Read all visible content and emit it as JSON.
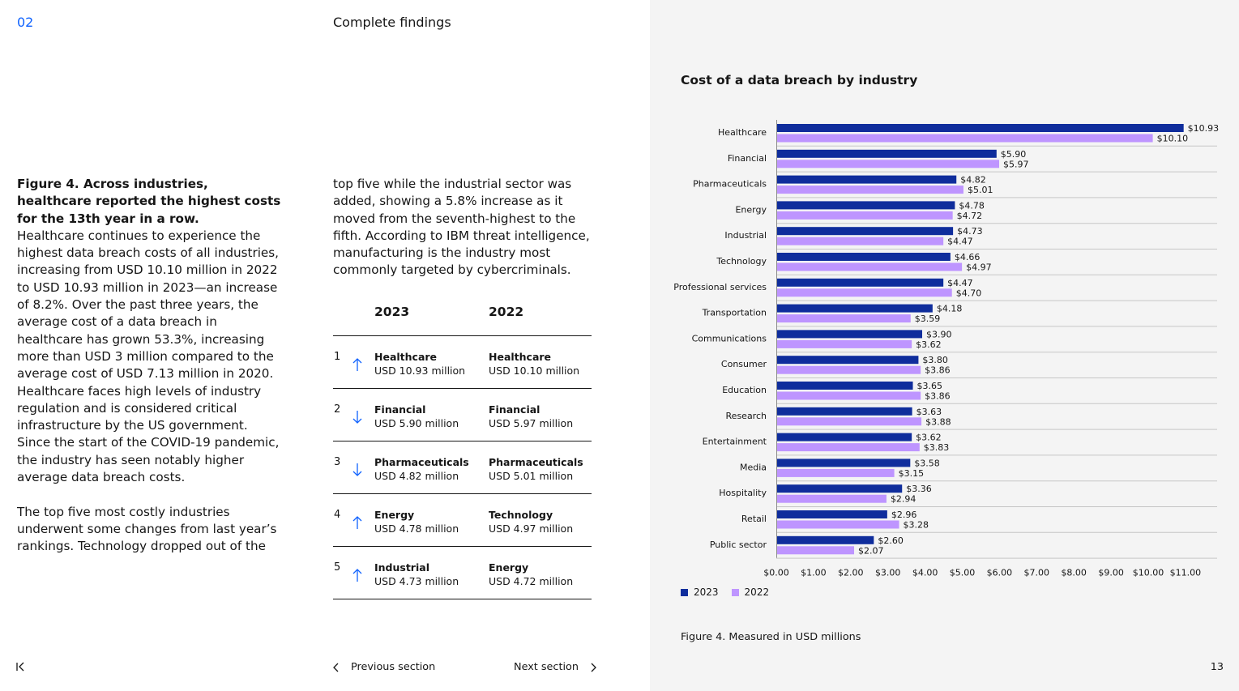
{
  "header": {
    "section_number": "02",
    "section_title": "Complete findings"
  },
  "column_left": {
    "figure_heading": "Figure 4. Across industries, healthcare reported the highest costs for the 13th year in a row.",
    "paragraph1": "Healthcare continues to experience the highest data breach costs of all industries, increasing from USD 10.10 million in 2022 to USD 10.93 million in 2023—an increase of 8.2%. Over the past three years, the average cost of a data breach in healthcare has grown 53.3%, increasing more than USD 3 million compared to the average cost of USD 7.13 million in 2020. Healthcare faces high levels of industry regulation and is considered critical infrastructure by the US government. Since the start of the COVID-19 pandemic, the industry has seen notably higher average data breach costs.",
    "paragraph2": "The top five most costly industries underwent some changes from last year’s rankings. Technology dropped out of the"
  },
  "column_right": {
    "paragraph": "top five while the industrial sector was added, showing a 5.8% increase as it moved from the seventh-highest to the fifth. According to IBM threat intelligence, manufacturing is the industry most commonly targeted by cybercriminals."
  },
  "ranking_table": {
    "header_2023": "2023",
    "header_2022": "2022",
    "rows": [
      {
        "rank": "1",
        "trend": "up",
        "ind_2023": "Healthcare",
        "val_2023": "USD 10.93 million",
        "ind_2022": "Healthcare",
        "val_2022": "USD 10.10 million"
      },
      {
        "rank": "2",
        "trend": "down",
        "ind_2023": "Financial",
        "val_2023": "USD 5.90 million",
        "ind_2022": "Financial",
        "val_2022": "USD 5.97 million"
      },
      {
        "rank": "3",
        "trend": "down",
        "ind_2023": "Pharmaceuticals",
        "val_2023": "USD 4.82 million",
        "ind_2022": "Pharmaceuticals",
        "val_2022": "USD 5.01 million"
      },
      {
        "rank": "4",
        "trend": "up",
        "ind_2023": "Energy",
        "val_2023": "USD 4.78 million",
        "ind_2022": "Technology",
        "val_2022": "USD 4.97 million"
      },
      {
        "rank": "5",
        "trend": "up",
        "ind_2023": "Industrial",
        "val_2023": "USD 4.73 million",
        "ind_2022": "Energy",
        "val_2022": "USD 4.72 million"
      }
    ]
  },
  "navigation": {
    "previous_label": "Previous section",
    "next_label": "Next section"
  },
  "page_number": "13",
  "figure_caption": "Figure 4. Measured in USD millions",
  "chart_data": {
    "type": "bar",
    "orientation": "horizontal",
    "title": "Cost of a data breach by industry",
    "categories": [
      "Healthcare",
      "Financial",
      "Pharmaceuticals",
      "Energy",
      "Industrial",
      "Technology",
      "Professional services",
      "Transportation",
      "Communications",
      "Consumer",
      "Education",
      "Research",
      "Entertainment",
      "Media",
      "Hospitality",
      "Retail",
      "Public sector"
    ],
    "series": [
      {
        "name": "2023",
        "color": "#0f2d9c",
        "values": [
          10.93,
          5.9,
          4.82,
          4.78,
          4.73,
          4.66,
          4.47,
          4.18,
          3.9,
          3.8,
          3.65,
          3.63,
          3.62,
          3.58,
          3.36,
          2.96,
          2.6
        ],
        "labels": [
          "$10.93",
          "$5.90",
          "$4.82",
          "$4.78",
          "$4.73",
          "$4.66",
          "$4.47",
          "$4.18",
          "$3.90",
          "$3.80",
          "$3.65",
          "$3.63",
          "$3.62",
          "$3.58",
          "$3.36",
          "$2.96",
          "$2.60"
        ]
      },
      {
        "name": "2022",
        "color": "#be95ff",
        "values": [
          10.1,
          5.97,
          5.01,
          4.72,
          4.47,
          4.97,
          4.7,
          3.59,
          3.62,
          3.86,
          3.86,
          3.88,
          3.83,
          3.15,
          2.94,
          3.28,
          2.07
        ],
        "labels": [
          "$10.10",
          "$5.97",
          "$5.01",
          "$4.72",
          "$4.47",
          "$4.97",
          "$4.70",
          "$3.59",
          "$3.62",
          "$3.86",
          "$3.86",
          "$3.88",
          "$3.83",
          "$3.15",
          "$2.94",
          "$3.28",
          "$2.07"
        ]
      }
    ],
    "xlim": [
      0,
      11
    ],
    "x_ticks": [
      "$0.00",
      "$1.00",
      "$2.00",
      "$3.00",
      "$4.00",
      "$5.00",
      "$6.00",
      "$7.00",
      "$8.00",
      "$9.00",
      "$10.00",
      "$11.00"
    ],
    "legend_position": "bottom-left",
    "grid": "row-separators"
  }
}
